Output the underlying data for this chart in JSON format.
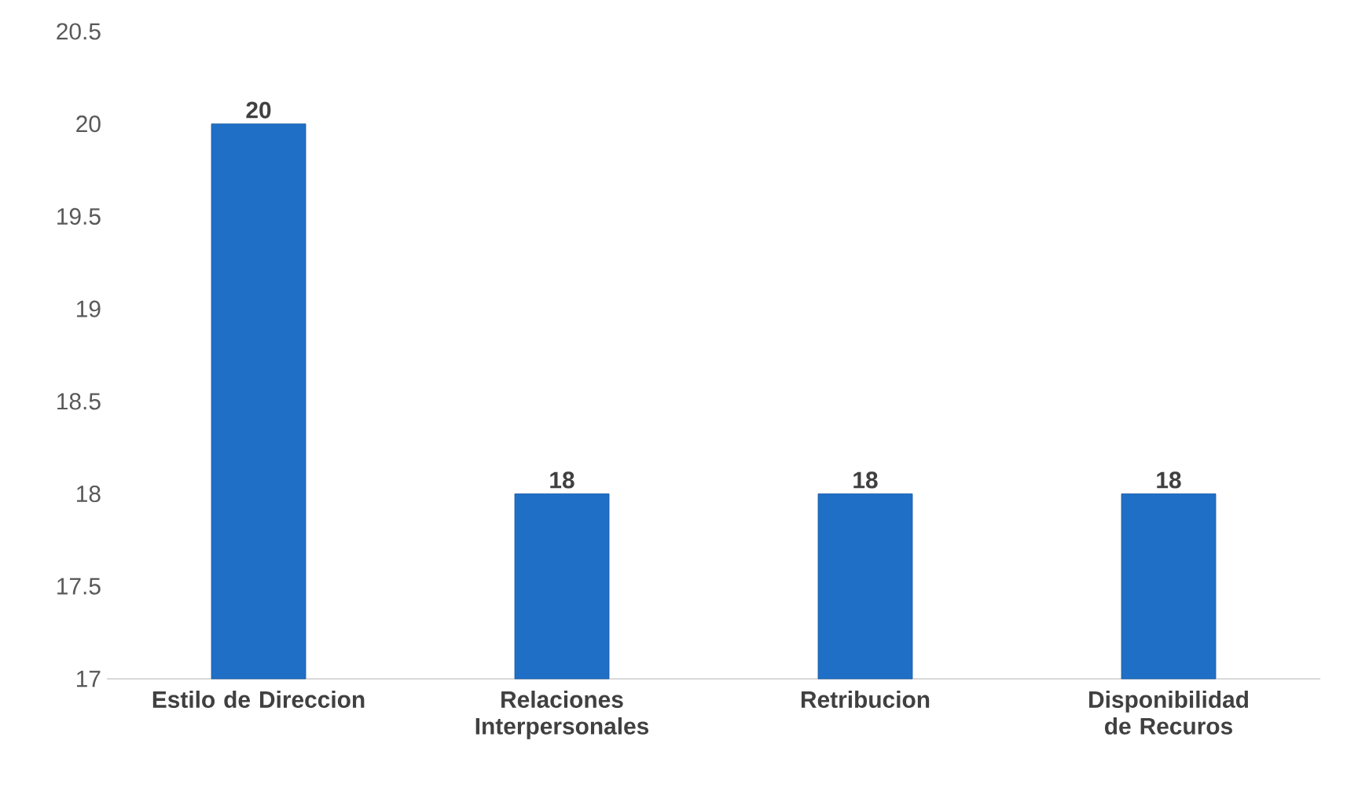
{
  "chart_data": {
    "type": "bar",
    "categories": [
      "Estilo de Direccion",
      "Relaciones Interpersonales",
      "Retribucion",
      "Disponibilidad de Recuros"
    ],
    "values": [
      20,
      18,
      18,
      18
    ],
    "color": "#1f6fc6",
    "ylim": [
      17,
      20.5
    ],
    "yticks": [
      17,
      17.5,
      18,
      18.5,
      19,
      19.5,
      20,
      20.5
    ],
    "data_labels": true,
    "grid": false
  }
}
